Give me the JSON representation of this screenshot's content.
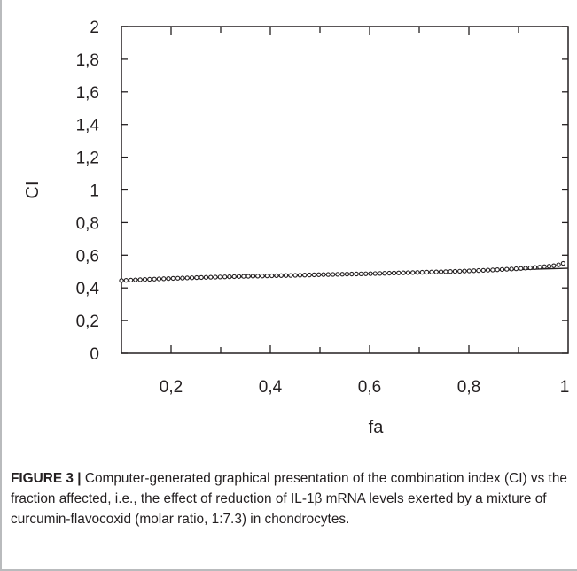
{
  "chart_data": {
    "type": "scatter",
    "xlabel": "fa",
    "ylabel": "CI",
    "xlim": [
      0.1,
      1
    ],
    "ylim": [
      0,
      2
    ],
    "x_ticks": [
      "0,2",
      "0,4",
      "0,6",
      "0,8",
      "1"
    ],
    "y_ticks": [
      "0",
      "0,2",
      "0,4",
      "0,6",
      "0,8",
      "1",
      "1,2",
      "1,4",
      "1,6",
      "1,8",
      "2"
    ],
    "grid": false,
    "points": [
      [
        0.1,
        0.445
      ],
      [
        0.15,
        0.452
      ],
      [
        0.2,
        0.458
      ],
      [
        0.25,
        0.463
      ],
      [
        0.3,
        0.467
      ],
      [
        0.35,
        0.471
      ],
      [
        0.4,
        0.474
      ],
      [
        0.45,
        0.477
      ],
      [
        0.5,
        0.481
      ],
      [
        0.55,
        0.484
      ],
      [
        0.6,
        0.487
      ],
      [
        0.65,
        0.491
      ],
      [
        0.7,
        0.495
      ],
      [
        0.75,
        0.499
      ],
      [
        0.8,
        0.504
      ],
      [
        0.85,
        0.51
      ],
      [
        0.9,
        0.518
      ],
      [
        0.93,
        0.524
      ],
      [
        0.95,
        0.529
      ],
      [
        0.97,
        0.535
      ],
      [
        0.98,
        0.541
      ],
      [
        0.99,
        0.55
      ]
    ]
  },
  "caption": {
    "label": "FIGURE 3 |",
    "text": " Computer-generated graphical presentation of the combination index (CI) vs the fraction affected, i.e., the effect of reduction of IL-1β mRNA levels exerted by a mixture of curcumin-flavocoxid (molar ratio, 1:7.3) in chondrocytes."
  }
}
